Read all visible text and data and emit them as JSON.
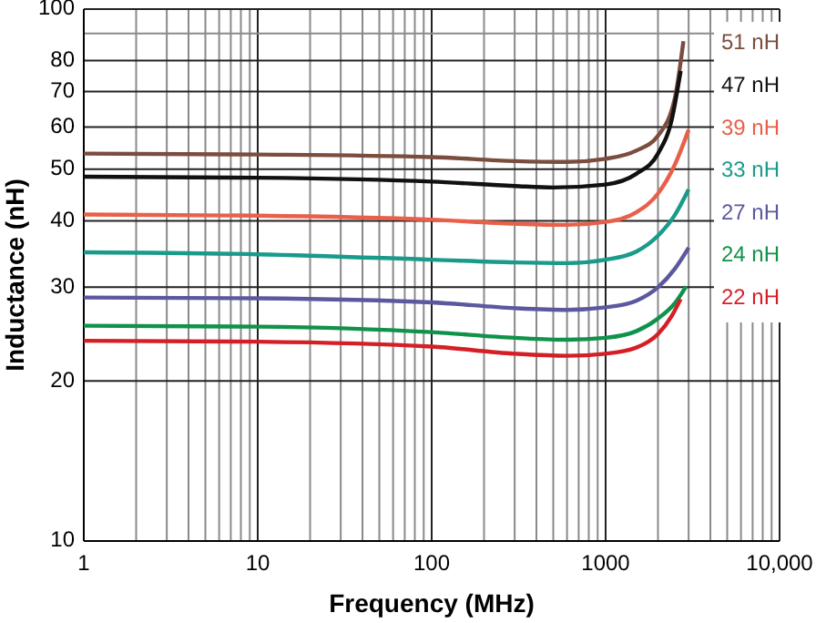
{
  "chart_data": {
    "type": "line",
    "xlabel": "Frequency (MHz)",
    "ylabel": "Inductance (nH)",
    "log": "xy",
    "grid": true,
    "legend": false,
    "marker": "none",
    "line_style": "solid",
    "x": [
      1,
      10,
      100,
      300,
      600,
      1000,
      1500,
      2000,
      2500,
      2800
    ],
    "xlim": [
      1,
      10000
    ],
    "ylim": [
      10,
      100
    ],
    "xticks": [
      1,
      {
        "value": 2,
        "label": null
      },
      {
        "value": 3,
        "label": null
      },
      {
        "value": 4,
        "label": null
      },
      {
        "value": 5,
        "label": null
      },
      {
        "value": 6,
        "label": null
      },
      {
        "value": 7,
        "label": null
      },
      {
        "value": 8,
        "label": null
      },
      {
        "value": 9,
        "label": null
      },
      10,
      {
        "value": 20,
        "label": null
      },
      {
        "value": 30,
        "label": null
      },
      {
        "value": 40,
        "label": null
      },
      {
        "value": 50,
        "label": null
      },
      {
        "value": 60,
        "label": null
      },
      {
        "value": 70,
        "label": null
      },
      {
        "value": 80,
        "label": null
      },
      {
        "value": 90,
        "label": null
      },
      100,
      {
        "value": 200,
        "label": null
      },
      {
        "value": 300,
        "label": null
      },
      {
        "value": 400,
        "label": null
      },
      {
        "value": 500,
        "label": null
      },
      {
        "value": 600,
        "label": null
      },
      {
        "value": 700,
        "label": null
      },
      {
        "value": 800,
        "label": null
      },
      {
        "value": 900,
        "label": null
      },
      1000,
      {
        "value": 2000,
        "label": null
      },
      {
        "value": 3000,
        "label": null
      },
      {
        "value": 4000,
        "label": null
      },
      {
        "value": 5000,
        "label": null
      },
      {
        "value": 6000,
        "label": null
      },
      {
        "value": 7000,
        "label": null
      },
      {
        "value": 8000,
        "label": null
      },
      {
        "value": 9000,
        "label": null
      },
      {
        "value": 10000,
        "label": "10,000"
      }
    ],
    "yticks": [
      10,
      20,
      30,
      40,
      50,
      60,
      70,
      80,
      {
        "value": 90,
        "label": null
      },
      100
    ],
    "series": [
      {
        "name": "51 nH",
        "color": "#7b4d3e",
        "values": [
          53.5,
          53.3,
          52.7,
          51.8,
          51.6,
          52.3,
          54.2,
          57.8,
          68,
          87
        ]
      },
      {
        "name": "47 nH",
        "color": "#111111",
        "x": [
          1,
          10,
          100,
          300,
          500,
          1000,
          1500,
          2000,
          2400,
          2700
        ],
        "values": [
          48.4,
          48.2,
          47.4,
          46.5,
          46.2,
          46.8,
          49,
          53.5,
          62,
          76.5
        ]
      },
      {
        "name": "39 nH",
        "color": "#e8604a",
        "x": [
          1,
          10,
          100,
          300,
          600,
          1000,
          1500,
          2000,
          2500,
          3000
        ],
        "values": [
          41.1,
          40.9,
          40.2,
          39.5,
          39.3,
          39.8,
          41.5,
          45,
          51,
          59.3
        ]
      },
      {
        "name": "33 nH",
        "color": "#1a9a8a",
        "x": [
          1,
          10,
          100,
          300,
          600,
          1000,
          1500,
          2000,
          2500,
          3000
        ],
        "values": [
          34.9,
          34.6,
          33.8,
          33.4,
          33.3,
          33.8,
          35,
          37.5,
          41,
          45.8
        ]
      },
      {
        "name": "27 nH",
        "color": "#5c58a0",
        "x": [
          1,
          10,
          100,
          300,
          600,
          1000,
          1500,
          2000,
          2500,
          3000
        ],
        "values": [
          28.7,
          28.6,
          28.1,
          27.4,
          27.2,
          27.5,
          28.3,
          30,
          32.5,
          35.6
        ]
      },
      {
        "name": "24 nH",
        "color": "#10924a",
        "x": [
          1,
          10,
          100,
          300,
          600,
          1000,
          1500,
          2000,
          2500,
          2900
        ],
        "values": [
          25.4,
          25.3,
          24.7,
          24.1,
          23.9,
          24.1,
          24.8,
          26.2,
          28,
          30.1
        ]
      },
      {
        "name": "22 nH",
        "color": "#d41f26",
        "x": [
          1,
          10,
          100,
          300,
          600,
          1000,
          1500,
          2000,
          2400,
          2700
        ],
        "values": [
          23.8,
          23.7,
          23.2,
          22.5,
          22.3,
          22.5,
          23.1,
          24.5,
          26.5,
          28.5
        ]
      }
    ]
  }
}
